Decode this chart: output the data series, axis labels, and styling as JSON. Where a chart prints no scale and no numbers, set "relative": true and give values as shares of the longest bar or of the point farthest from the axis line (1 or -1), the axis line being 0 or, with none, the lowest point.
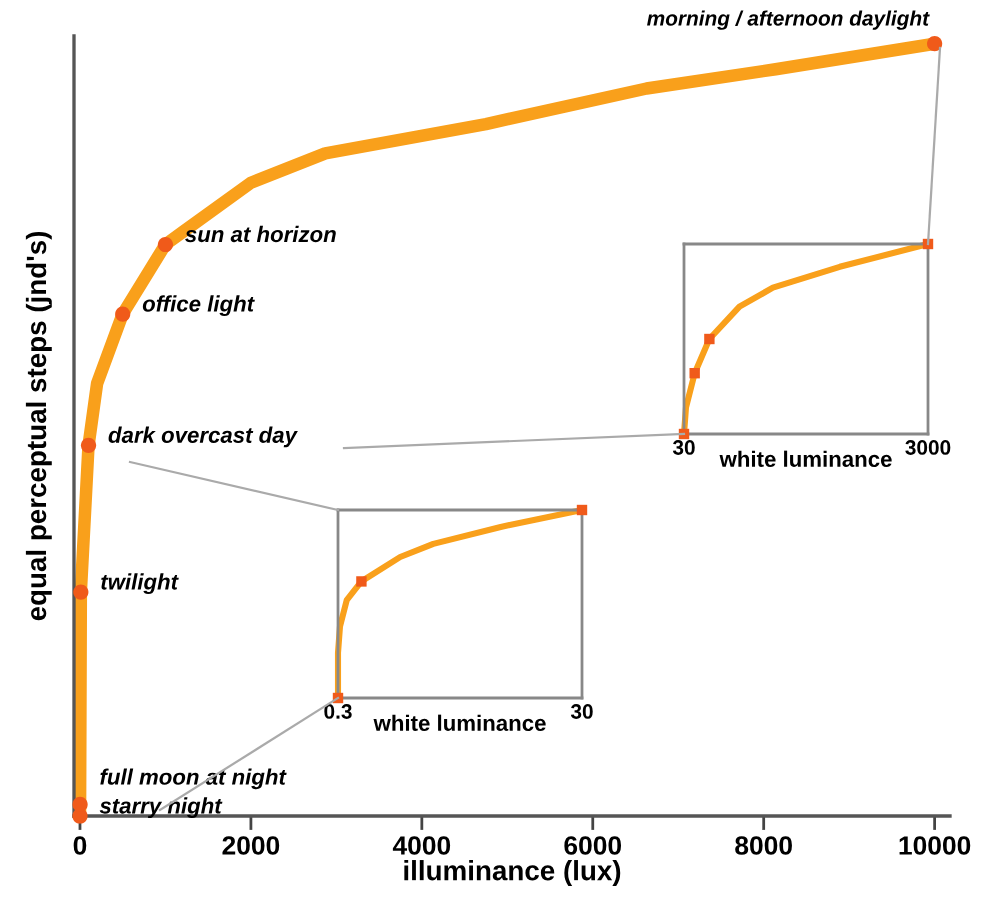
{
  "chart_data": [
    {
      "type": "line",
      "xlabel": "illuminance (lux)",
      "ylabel": "equal perceptual steps (jnd's)",
      "relative": true,
      "tick_labels": "x",
      "xlim": [
        -70,
        10180
      ],
      "xticks": [
        0,
        2000,
        4000,
        6000,
        8000,
        10000
      ],
      "series": [
        {
          "color": "#f9a01b",
          "x": [
            0,
            1,
            10,
            100,
            200,
            500,
            1000,
            1200,
            2000,
            2870,
            4750,
            6630,
            8140,
            10000
          ],
          "values": [
            0,
            0.015,
            0.29,
            0.48,
            0.56,
            0.65,
            0.74,
            0.756,
            0.82,
            0.858,
            0.896,
            0.942,
            0.967,
            1.0
          ]
        },
        {
          "type": "scatter",
          "color": "#f05a1a",
          "x": [
            0,
            1,
            10,
            100,
            500,
            1000,
            10000
          ],
          "values": [
            0,
            0.015,
            0.29,
            0.48,
            0.65,
            0.74,
            1.0
          ]
        }
      ],
      "annotations": [
        {
          "text": "starry night",
          "x": 0,
          "y": 0
        },
        {
          "text": "full moon at night",
          "x": 1,
          "y": 0.015
        },
        {
          "text": "twilight",
          "x": 10,
          "y": 0.29
        },
        {
          "text": "dark overcast day",
          "x": 100,
          "y": 0.48
        },
        {
          "text": "office light",
          "x": 500,
          "y": 0.65
        },
        {
          "text": "sun at horizon",
          "x": 1000,
          "y": 0.74
        },
        {
          "text": "morning / afternoon daylight",
          "x": 10000,
          "y": 1.0
        }
      ]
    },
    {
      "type": "line",
      "xlabel": "white luminance",
      "relative": true,
      "tick_labels": "x",
      "xlim": [
        0.3,
        30
      ],
      "xticks": [
        0.3,
        30
      ],
      "series": [
        {
          "color": "#f9a01b",
          "x": [
            0.3,
            0.3,
            0.54,
            1.36,
            3.15,
            7.87,
            11.9,
            20.1,
            30
          ],
          "values": [
            0,
            0.24,
            0.38,
            0.52,
            0.62,
            0.75,
            0.82,
            0.91,
            1.0
          ]
        },
        {
          "type": "scatter",
          "color": "#f05a1a",
          "x": [
            0.3,
            3.15,
            30
          ],
          "values": [
            0,
            0.62,
            1.0
          ]
        }
      ]
    },
    {
      "type": "line",
      "xlabel": "white luminance",
      "relative": true,
      "tick_labels": "x",
      "xlim": [
        30,
        3000
      ],
      "xticks": [
        30,
        3000
      ],
      "series": [
        {
          "color": "#f9a01b",
          "x": [
            30,
            54,
            160,
            339,
            705,
            1112,
            1926,
            3000
          ],
          "values": [
            0,
            0.14,
            0.32,
            0.5,
            0.67,
            0.77,
            0.88,
            1.0
          ]
        },
        {
          "type": "scatter",
          "color": "#f05a1a",
          "x": [
            30,
            160,
            339,
            3000
          ],
          "values": [
            0,
            0.32,
            0.5,
            1.0
          ]
        }
      ]
    }
  ]
}
